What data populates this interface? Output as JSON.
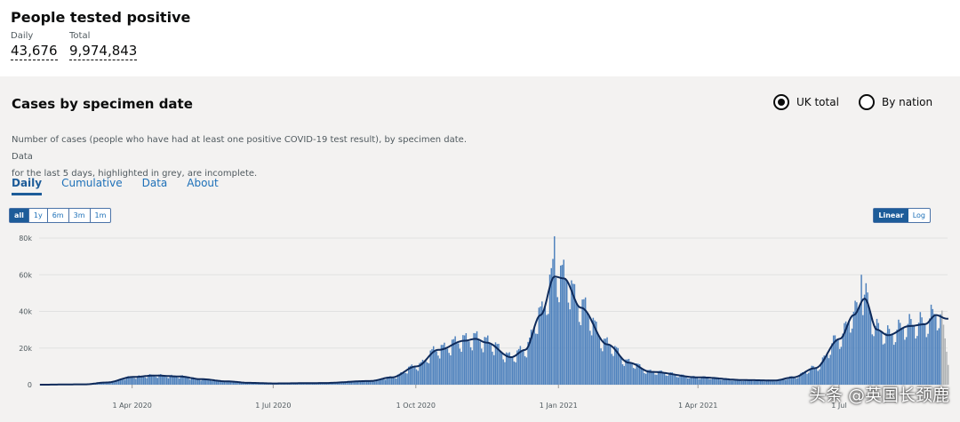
{
  "metrics": {
    "title": "People tested positive",
    "daily_label": "Daily",
    "daily_value": "43,676",
    "total_label": "Total",
    "total_value": "9,974,843"
  },
  "panel": {
    "title": "Cases by specimen date",
    "radio_uk": "UK total",
    "radio_nation": "By nation",
    "description_line1": "Number of cases (people who have had at least one positive COVID-19 test result), by specimen date. Data",
    "description_line2": "for the last 5 days, highlighted in grey, are incomplete."
  },
  "tabs": [
    "Daily",
    "Cumulative",
    "Data",
    "About"
  ],
  "range_buttons": [
    "all",
    "1y",
    "6m",
    "3m",
    "1m"
  ],
  "scale_buttons": [
    "Linear",
    "Log"
  ],
  "watermark": "头条 @英国长颈鹿",
  "colors": {
    "bar": "#4f82bd",
    "line": "#0e2a5a",
    "incomplete": "#b1b4b6"
  },
  "chart_data": {
    "type": "bar",
    "yticks": [
      "0",
      "20k",
      "40k",
      "60k",
      "80k"
    ],
    "ylim": [
      0,
      80000
    ],
    "xlim": [
      "2020-02-01",
      "2021-09-09"
    ],
    "xticks": [
      {
        "date": "2020-04-01",
        "label": "1 Apr 2020"
      },
      {
        "date": "2020-07-01",
        "label": "1 Jul 2020"
      },
      {
        "date": "2020-10-01",
        "label": "1 Oct 2020"
      },
      {
        "date": "2021-01-01",
        "label": "1 Jan 2021"
      },
      {
        "date": "2021-04-01",
        "label": "1 Apr 2021"
      },
      {
        "date": "2021-07-01",
        "label": "1 Jul"
      }
    ],
    "series_points": [
      [
        "2020-02-01",
        0
      ],
      [
        "2020-03-01",
        200
      ],
      [
        "2020-03-15",
        1200
      ],
      [
        "2020-04-01",
        4200
      ],
      [
        "2020-04-15",
        5000
      ],
      [
        "2020-05-01",
        4500
      ],
      [
        "2020-05-15",
        3000
      ],
      [
        "2020-06-01",
        1800
      ],
      [
        "2020-06-15",
        1000
      ],
      [
        "2020-07-01",
        700
      ],
      [
        "2020-08-01",
        900
      ],
      [
        "2020-09-01",
        2000
      ],
      [
        "2020-09-15",
        4000
      ],
      [
        "2020-10-01",
        10000
      ],
      [
        "2020-10-15",
        19000
      ],
      [
        "2020-11-01",
        24000
      ],
      [
        "2020-11-08",
        25000
      ],
      [
        "2020-11-15",
        23000
      ],
      [
        "2020-12-01",
        15000
      ],
      [
        "2020-12-10",
        19000
      ],
      [
        "2020-12-20",
        38000
      ],
      [
        "2020-12-29",
        59000
      ],
      [
        "2021-01-04",
        58000
      ],
      [
        "2021-01-15",
        42000
      ],
      [
        "2021-02-01",
        22000
      ],
      [
        "2021-02-15",
        12000
      ],
      [
        "2021-03-01",
        7000
      ],
      [
        "2021-04-01",
        4000
      ],
      [
        "2021-05-01",
        2500
      ],
      [
        "2021-05-20",
        2300
      ],
      [
        "2021-06-01",
        4000
      ],
      [
        "2021-06-15",
        9000
      ],
      [
        "2021-07-01",
        25000
      ],
      [
        "2021-07-10",
        38000
      ],
      [
        "2021-07-17",
        47000
      ],
      [
        "2021-07-25",
        30000
      ],
      [
        "2021-08-01",
        27000
      ],
      [
        "2021-08-15",
        32000
      ],
      [
        "2021-08-25",
        33000
      ],
      [
        "2021-09-01",
        38000
      ],
      [
        "2021-09-08",
        36000
      ]
    ],
    "incomplete_days": 5
  }
}
